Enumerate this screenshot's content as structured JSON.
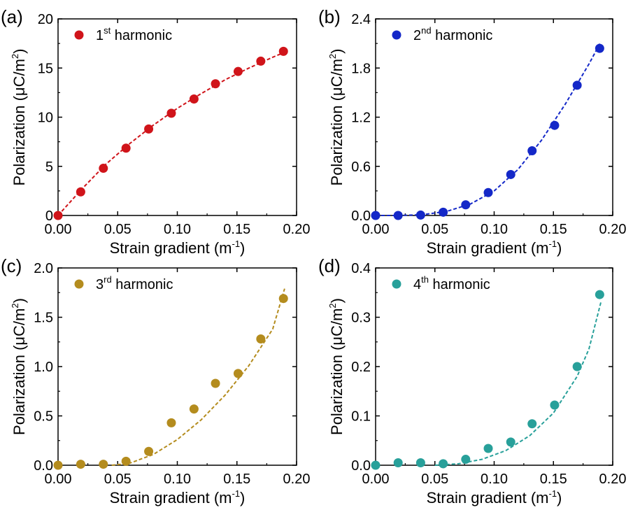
{
  "chart_data": [
    {
      "type": "scatter",
      "panel_label": "(a)",
      "legend": {
        "base": "1",
        "sup": "st",
        "rest": " harmonic",
        "placement": "top-left"
      },
      "xlabel": {
        "text": "Strain gradient (m",
        "sup": "-1",
        "close": ")"
      },
      "ylabel": {
        "text": "Polarization (μC/m",
        "sup": "2",
        "close": ")"
      },
      "xlim": [
        0,
        0.2
      ],
      "ylim": [
        0,
        20
      ],
      "xticks": [
        "0.00",
        "0.05",
        "0.10",
        "0.15",
        "0.20"
      ],
      "yticks": [
        "0",
        "5",
        "10",
        "15",
        "20"
      ],
      "color": "#d0141a",
      "fit_color": "#d0141a",
      "x": [
        0.0,
        0.019,
        0.038,
        0.057,
        0.076,
        0.095,
        0.114,
        0.132,
        0.151,
        0.17,
        0.189
      ],
      "y": [
        0.0,
        2.4,
        4.8,
        6.85,
        8.8,
        10.4,
        11.85,
        13.4,
        14.65,
        15.7,
        16.7
      ],
      "fit": {
        "x": [
          0.0,
          0.02,
          0.04,
          0.06,
          0.08,
          0.1,
          0.12,
          0.14,
          0.16,
          0.18,
          0.19
        ],
        "y": [
          0.0,
          2.7,
          5.2,
          7.3,
          9.2,
          10.9,
          12.4,
          13.8,
          15.0,
          16.1,
          16.6
        ]
      }
    },
    {
      "type": "scatter",
      "panel_label": "(b)",
      "legend": {
        "base": "2",
        "sup": "nd",
        "rest": " harmonic",
        "placement": "top-left"
      },
      "xlabel": {
        "text": "Strain gradient (m",
        "sup": "-1",
        "close": ")"
      },
      "ylabel": {
        "text": "Polarization (μC/m",
        "sup": "2",
        "close": ")"
      },
      "xlim": [
        0,
        0.2
      ],
      "ylim": [
        0,
        2.4
      ],
      "xticks": [
        "0.00",
        "0.05",
        "0.10",
        "0.15",
        "0.20"
      ],
      "yticks": [
        "0.0",
        "0.6",
        "1.2",
        "1.8",
        "2.4"
      ],
      "color": "#1428c8",
      "fit_color": "#1428c8",
      "x": [
        0.0,
        0.019,
        0.038,
        0.057,
        0.076,
        0.095,
        0.114,
        0.132,
        0.151,
        0.17,
        0.189
      ],
      "y": [
        0.0,
        0.0,
        0.005,
        0.04,
        0.13,
        0.28,
        0.5,
        0.79,
        1.1,
        1.59,
        2.04
      ],
      "fit": {
        "x": [
          0.0,
          0.02,
          0.04,
          0.06,
          0.08,
          0.1,
          0.12,
          0.14,
          0.16,
          0.18,
          0.19
        ],
        "y": [
          0.0,
          0.0,
          0.01,
          0.05,
          0.14,
          0.3,
          0.56,
          0.92,
          1.36,
          1.85,
          2.12
        ]
      }
    },
    {
      "type": "scatter",
      "panel_label": "(c)",
      "legend": {
        "base": "3",
        "sup": "rd",
        "rest": " harmonic",
        "placement": "top-left"
      },
      "xlabel": {
        "text": "Strain gradient (m",
        "sup": "-1",
        "close": ")"
      },
      "ylabel": {
        "text": "Polarization (μC/m",
        "sup": "2",
        "close": ")"
      },
      "xlim": [
        0,
        0.2
      ],
      "ylim": [
        0,
        2.0
      ],
      "xticks": [
        "0.00",
        "0.05",
        "0.10",
        "0.15",
        "0.20"
      ],
      "yticks": [
        "0.0",
        "0.5",
        "1.0",
        "1.5",
        "2.0"
      ],
      "color": "#b48c1e",
      "fit_color": "#b48c1e",
      "x": [
        0.0,
        0.019,
        0.038,
        0.057,
        0.076,
        0.095,
        0.114,
        0.132,
        0.151,
        0.17,
        0.189
      ],
      "y": [
        0.0,
        0.01,
        0.01,
        0.04,
        0.14,
        0.43,
        0.57,
        0.83,
        0.93,
        1.28,
        1.69
      ],
      "fit": {
        "x": [
          0.045,
          0.06,
          0.08,
          0.1,
          0.12,
          0.14,
          0.16,
          0.18,
          0.19
        ],
        "y": [
          0.0,
          0.02,
          0.11,
          0.26,
          0.46,
          0.71,
          1.01,
          1.38,
          1.79
        ]
      }
    },
    {
      "type": "scatter",
      "panel_label": "(d)",
      "legend": {
        "base": "4",
        "sup": "th",
        "rest": " harmonic",
        "placement": "top-left"
      },
      "xlabel": {
        "text": "Strain gradient (m",
        "sup": "-1",
        "close": ")"
      },
      "ylabel": {
        "text": "Polarization (μC/m",
        "sup": "2",
        "close": ")"
      },
      "xlim": [
        0,
        0.2
      ],
      "ylim": [
        0,
        0.4
      ],
      "xticks": [
        "0.00",
        "0.05",
        "0.10",
        "0.15",
        "0.20"
      ],
      "yticks": [
        "0.0",
        "0.1",
        "0.2",
        "0.3",
        "0.4"
      ],
      "color": "#28a09a",
      "fit_color": "#28a09a",
      "x": [
        0.0,
        0.019,
        0.038,
        0.057,
        0.076,
        0.095,
        0.114,
        0.132,
        0.151,
        0.17,
        0.189
      ],
      "y": [
        0.0,
        0.005,
        0.005,
        0.003,
        0.012,
        0.034,
        0.047,
        0.084,
        0.122,
        0.2,
        0.346
      ],
      "fit": {
        "x": [
          0.05,
          0.07,
          0.09,
          0.11,
          0.13,
          0.15,
          0.17,
          0.18,
          0.19
        ],
        "y": [
          0.0,
          0.003,
          0.012,
          0.03,
          0.06,
          0.106,
          0.18,
          0.236,
          0.33
        ]
      }
    }
  ]
}
